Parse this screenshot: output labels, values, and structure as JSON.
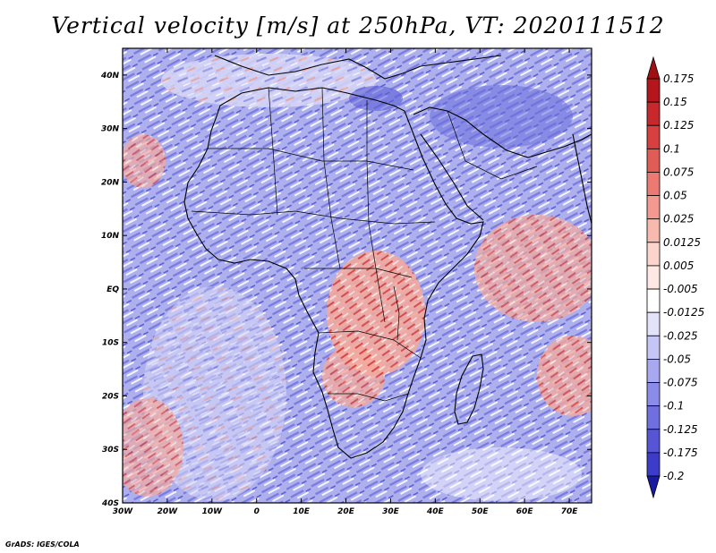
{
  "title": "Vertical velocity [m/s] at 250hPa, VT: 2020111512",
  "credit": "GrADS: IGES/COLA",
  "map": {
    "lon_range": [
      -30,
      75
    ],
    "lat_range": [
      -40,
      45
    ],
    "lat_ticks": [
      {
        "lat": 40,
        "label": "40N"
      },
      {
        "lat": 30,
        "label": "30N"
      },
      {
        "lat": 20,
        "label": "20N"
      },
      {
        "lat": 10,
        "label": "10N"
      },
      {
        "lat": 0,
        "label": "EQ"
      },
      {
        "lat": -10,
        "label": "10S"
      },
      {
        "lat": -20,
        "label": "20S"
      },
      {
        "lat": -30,
        "label": "30S"
      },
      {
        "lat": -40,
        "label": "40S"
      }
    ],
    "lon_ticks": [
      {
        "lon": -30,
        "label": "30W"
      },
      {
        "lon": -20,
        "label": "20W"
      },
      {
        "lon": -10,
        "label": "10W"
      },
      {
        "lon": 0,
        "label": "0"
      },
      {
        "lon": 10,
        "label": "10E"
      },
      {
        "lon": 20,
        "label": "20E"
      },
      {
        "lon": 30,
        "label": "30E"
      },
      {
        "lon": 40,
        "label": "40E"
      },
      {
        "lon": 50,
        "label": "50E"
      },
      {
        "lon": 60,
        "label": "60E"
      },
      {
        "lon": 70,
        "label": "70E"
      }
    ]
  },
  "colorbar": {
    "levels": [
      {
        "label": "0.175",
        "color": "#b4161c"
      },
      {
        "label": "0.15",
        "color": "#c8282c"
      },
      {
        "label": "0.125",
        "color": "#d7403f"
      },
      {
        "label": "0.1",
        "color": "#e25c56"
      },
      {
        "label": "0.075",
        "color": "#ec7a72"
      },
      {
        "label": "0.05",
        "color": "#f3998f"
      },
      {
        "label": "0.025",
        "color": "#f8baaf"
      },
      {
        "label": "0.0125",
        "color": "#fbd4cc"
      },
      {
        "label": "0.005",
        "color": "#fde8e3"
      },
      {
        "label": "-0.005",
        "color": "#ffffff"
      },
      {
        "label": "-0.0125",
        "color": "#e2e2fb"
      },
      {
        "label": "-0.025",
        "color": "#c6c6f6"
      },
      {
        "label": "-0.05",
        "color": "#a8a8f0"
      },
      {
        "label": "-0.075",
        "color": "#8b8be9"
      },
      {
        "label": "-0.1",
        "color": "#6f6fe0"
      },
      {
        "label": "-0.125",
        "color": "#5555d6"
      },
      {
        "label": "-0.175",
        "color": "#3c3cca"
      },
      {
        "label": "-0.2",
        "color": "#2626b8"
      }
    ],
    "bottom_color": "#1a1aa0",
    "top_color": "#a00f14"
  }
}
